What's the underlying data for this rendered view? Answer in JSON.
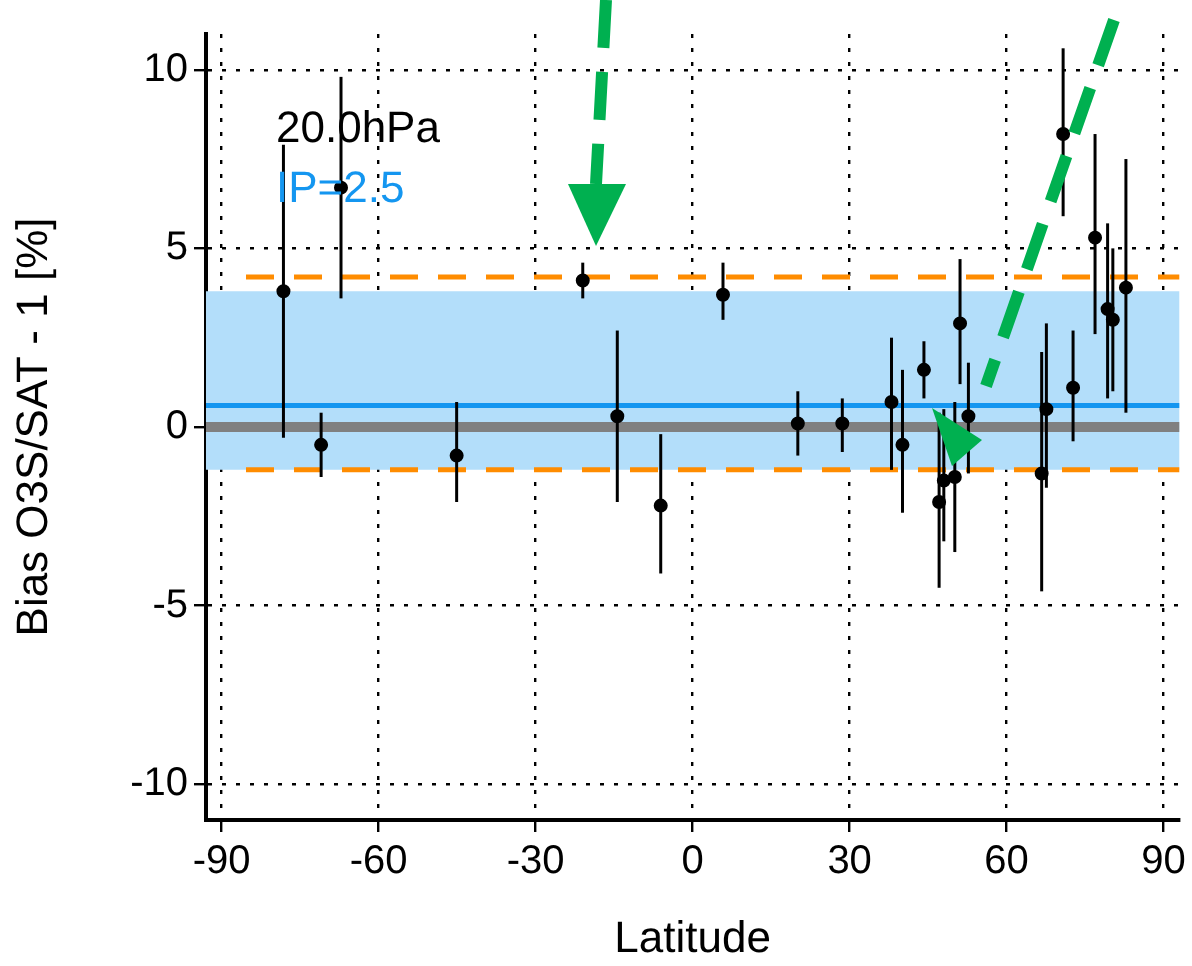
{
  "chart_data": {
    "type": "scatter",
    "xlabel": "Latitude",
    "ylabel": "Bias O3S/SAT - 1 [%]",
    "annotations": [
      "20.0hPa",
      "IP=2.5"
    ],
    "x": [
      -78.2,
      -67.2,
      -71,
      -45.1,
      -21,
      -14.4,
      -6.1,
      5.8,
      20.1,
      28.6,
      38,
      40.1,
      44.2,
      47.1,
      48,
      50.1,
      51.1,
      52.7,
      66.7,
      67.6,
      72.7,
      70.8,
      76.9,
      79.3,
      80.3,
      82.8
    ],
    "values": [
      3.8,
      6.7,
      -0.5,
      -0.8,
      4.1,
      0.3,
      -2.2,
      3.7,
      0.1,
      0.1,
      0.7,
      -0.5,
      1.6,
      -2.1,
      -1.5,
      -1.4,
      2.9,
      0.3,
      -1.3,
      0.5,
      1.1,
      8.2,
      5.3,
      3.3,
      3.0,
      3.9
    ],
    "errors": [
      [
        -0.3,
        7.9
      ],
      [
        3.6,
        9.8
      ],
      [
        -1.4,
        0.4
      ],
      [
        -2.1,
        0.7
      ],
      [
        3.6,
        4.6
      ],
      [
        -2.1,
        2.7
      ],
      [
        -4.1,
        -0.2
      ],
      [
        3.0,
        4.6
      ],
      [
        -0.8,
        1.0
      ],
      [
        -0.7,
        0.8
      ],
      [
        -1.2,
        2.5
      ],
      [
        -2.4,
        1.6
      ],
      [
        0.8,
        2.4
      ],
      [
        -4.5,
        0.4
      ],
      [
        -3.2,
        0.5
      ],
      [
        -3.5,
        0.7
      ],
      [
        1.2,
        4.7
      ],
      [
        -1.3,
        1.8
      ],
      [
        -4.6,
        2.1
      ],
      [
        -1.7,
        2.9
      ],
      [
        -0.4,
        2.7
      ],
      [
        5.9,
        10.6
      ],
      [
        2.6,
        8.2
      ],
      [
        0.8,
        5.7
      ],
      [
        1.0,
        5.0
      ],
      [
        0.4,
        7.5
      ]
    ],
    "color": "#000000",
    "marker": "circle",
    "xlim": [
      -93,
      93
    ],
    "xticks": [
      -90,
      -60,
      -30,
      0,
      30,
      60,
      90
    ],
    "ylim": [
      -11,
      11
    ],
    "yticks": [
      -10,
      -5,
      0,
      5,
      10
    ],
    "grid": true,
    "bands": [
      {
        "axis": "y",
        "from": -1.2,
        "to": 3.8,
        "color": "#b3defa"
      }
    ],
    "ref_lines": [
      {
        "axis": "y",
        "value": 0,
        "color": "#808080"
      },
      {
        "axis": "y",
        "value": 0.6,
        "color": "#1496f0"
      },
      {
        "axis": "y",
        "value": 4.2,
        "color": "#ff8c00",
        "line_style": "dashed"
      },
      {
        "axis": "y",
        "value": -1.2,
        "color": "#ff8c00",
        "line_style": "dashed"
      }
    ]
  }
}
